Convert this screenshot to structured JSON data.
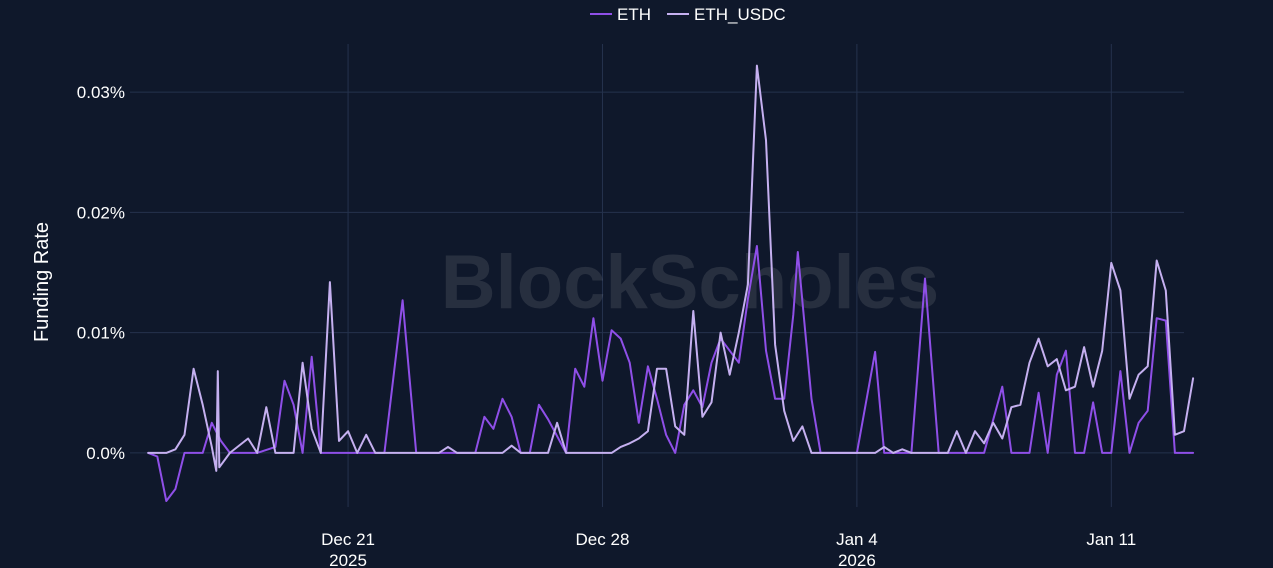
{
  "watermark": "BlockScholes",
  "chart_data": {
    "type": "line",
    "title": "",
    "xlabel": "",
    "ylabel": "Funding Rate",
    "x_range": [
      "2025-12-15",
      "2026-01-13"
    ],
    "ylim": [
      -0.0045,
      0.034
    ],
    "y_unit": "%",
    "y_ticks": [
      0.0,
      0.01,
      0.02,
      0.03
    ],
    "y_tick_labels": [
      "0.0%",
      "0.01%",
      "0.02%",
      "0.03%"
    ],
    "x_ticks": [
      "2025-12-21",
      "2025-12-28",
      "2026-01-04",
      "2026-01-11"
    ],
    "x_tick_labels": [
      {
        "day": "Dec 21",
        "year": "2025"
      },
      {
        "day": "Dec 28",
        "year": ""
      },
      {
        "day": "Jan 4",
        "year": "2026"
      },
      {
        "day": "Jan 11",
        "year": ""
      }
    ],
    "grid": true,
    "legend_position": "top-center",
    "series": [
      {
        "name": "ETH",
        "color": "#8f4fe8",
        "points": [
          [
            "2025-12-15T12:00",
            0.0
          ],
          [
            "2025-12-15T18:00",
            -0.0003
          ],
          [
            "2025-12-16T00:00",
            -0.004
          ],
          [
            "2025-12-16T06:00",
            -0.003
          ],
          [
            "2025-12-16T12:00",
            0.0
          ],
          [
            "2025-12-17T00:00",
            0.0
          ],
          [
            "2025-12-17T06:00",
            0.0025
          ],
          [
            "2025-12-17T12:00",
            0.001
          ],
          [
            "2025-12-17T18:00",
            0.0
          ],
          [
            "2025-12-18T12:00",
            0.0
          ],
          [
            "2025-12-19T00:00",
            0.0005
          ],
          [
            "2025-12-19T06:00",
            0.006
          ],
          [
            "2025-12-19T12:00",
            0.004
          ],
          [
            "2025-12-19T18:00",
            0.0
          ],
          [
            "2025-12-20T00:00",
            0.008
          ],
          [
            "2025-12-20T06:00",
            0.0
          ],
          [
            "2025-12-22T00:00",
            0.0
          ],
          [
            "2025-12-22T12:00",
            0.0127
          ],
          [
            "2025-12-22T21:00",
            0.0
          ],
          [
            "2025-12-24T12:00",
            0.0
          ],
          [
            "2025-12-24T18:00",
            0.003
          ],
          [
            "2025-12-25T00:00",
            0.002
          ],
          [
            "2025-12-25T06:00",
            0.0045
          ],
          [
            "2025-12-25T12:00",
            0.003
          ],
          [
            "2025-12-25T18:00",
            0.0
          ],
          [
            "2025-12-26T00:00",
            0.0
          ],
          [
            "2025-12-26T06:00",
            0.004
          ],
          [
            "2025-12-26T12:00",
            0.0028
          ],
          [
            "2025-12-27T00:00",
            0.0
          ],
          [
            "2025-12-27T06:00",
            0.007
          ],
          [
            "2025-12-27T12:00",
            0.0055
          ],
          [
            "2025-12-27T18:00",
            0.0112
          ],
          [
            "2025-12-28T00:00",
            0.006
          ],
          [
            "2025-12-28T06:00",
            0.0102
          ],
          [
            "2025-12-28T12:00",
            0.0095
          ],
          [
            "2025-12-28T18:00",
            0.0075
          ],
          [
            "2025-12-29T00:00",
            0.0025
          ],
          [
            "2025-12-29T06:00",
            0.0072
          ],
          [
            "2025-12-29T12:00",
            0.0045
          ],
          [
            "2025-12-29T18:00",
            0.0015
          ],
          [
            "2025-12-30T00:00",
            0.0
          ],
          [
            "2025-12-30T06:00",
            0.004
          ],
          [
            "2025-12-30T12:00",
            0.0052
          ],
          [
            "2025-12-30T18:00",
            0.0038
          ],
          [
            "2025-12-31T00:00",
            0.0075
          ],
          [
            "2025-12-31T06:00",
            0.0095
          ],
          [
            "2025-12-31T12:00",
            0.0085
          ],
          [
            "2025-12-31T18:00",
            0.0075
          ],
          [
            "2026-01-01T00:00",
            0.0128
          ],
          [
            "2026-01-01T06:00",
            0.0172
          ],
          [
            "2026-01-01T12:00",
            0.0085
          ],
          [
            "2026-01-01T18:00",
            0.0045
          ],
          [
            "2026-01-02T00:00",
            0.0045
          ],
          [
            "2026-01-02T06:00",
            0.0115
          ],
          [
            "2026-01-02T09:00",
            0.0167
          ],
          [
            "2026-01-02T18:00",
            0.0045
          ],
          [
            "2026-01-03T00:00",
            0.0
          ],
          [
            "2026-01-04T00:00",
            0.0
          ],
          [
            "2026-01-04T12:00",
            0.0084
          ],
          [
            "2026-01-04T18:00",
            0.0
          ],
          [
            "2026-01-05T12:00",
            0.0
          ],
          [
            "2026-01-05T21:00",
            0.0145
          ],
          [
            "2026-01-06T06:00",
            0.0
          ],
          [
            "2026-01-07T12:00",
            0.0
          ],
          [
            "2026-01-08T00:00",
            0.0055
          ],
          [
            "2026-01-08T06:00",
            0.0
          ],
          [
            "2026-01-08T18:00",
            0.0
          ],
          [
            "2026-01-09T00:00",
            0.005
          ],
          [
            "2026-01-09T06:00",
            0.0
          ],
          [
            "2026-01-09T12:00",
            0.0065
          ],
          [
            "2026-01-09T18:00",
            0.0085
          ],
          [
            "2026-01-10T00:00",
            0.0
          ],
          [
            "2026-01-10T06:00",
            0.0
          ],
          [
            "2026-01-10T12:00",
            0.0042
          ],
          [
            "2026-01-10T18:00",
            0.0
          ],
          [
            "2026-01-11T00:00",
            0.0
          ],
          [
            "2026-01-11T06:00",
            0.0068
          ],
          [
            "2026-01-11T12:00",
            0.0
          ],
          [
            "2026-01-11T18:00",
            0.0025
          ],
          [
            "2026-01-12T00:00",
            0.0035
          ],
          [
            "2026-01-12T06:00",
            0.0112
          ],
          [
            "2026-01-12T12:00",
            0.011
          ],
          [
            "2026-01-12T18:00",
            0.0
          ],
          [
            "2026-01-13T06:00",
            0.0
          ]
        ]
      },
      {
        "name": "ETH_USDC",
        "color": "#c5b0f0",
        "points": [
          [
            "2025-12-15T12:00",
            0.0
          ],
          [
            "2025-12-16T00:00",
            0.0
          ],
          [
            "2025-12-16T06:00",
            0.0003
          ],
          [
            "2025-12-16T12:00",
            0.0015
          ],
          [
            "2025-12-16T18:00",
            0.007
          ],
          [
            "2025-12-17T00:00",
            0.004
          ],
          [
            "2025-12-17T06:00",
            0.0005
          ],
          [
            "2025-12-17T09:00",
            -0.0015
          ],
          [
            "2025-12-17T10:00",
            0.0068
          ],
          [
            "2025-12-17T11:00",
            -0.0012
          ],
          [
            "2025-12-17T18:00",
            0.0
          ],
          [
            "2025-12-18T06:00",
            0.0012
          ],
          [
            "2025-12-18T12:00",
            0.0
          ],
          [
            "2025-12-18T18:00",
            0.0038
          ],
          [
            "2025-12-19T00:00",
            0.0
          ],
          [
            "2025-12-19T12:00",
            0.0
          ],
          [
            "2025-12-19T18:00",
            0.0075
          ],
          [
            "2025-12-20T00:00",
            0.002
          ],
          [
            "2025-12-20T06:00",
            0.0
          ],
          [
            "2025-12-20T12:00",
            0.0142
          ],
          [
            "2025-12-20T18:00",
            0.001
          ],
          [
            "2025-12-21T00:00",
            0.0018
          ],
          [
            "2025-12-21T06:00",
            0.0
          ],
          [
            "2025-12-21T12:00",
            0.0015
          ],
          [
            "2025-12-21T18:00",
            0.0
          ],
          [
            "2025-12-23T12:00",
            0.0
          ],
          [
            "2025-12-23T18:00",
            0.0005
          ],
          [
            "2025-12-24T00:00",
            0.0
          ],
          [
            "2025-12-25T06:00",
            0.0
          ],
          [
            "2025-12-25T12:00",
            0.0006
          ],
          [
            "2025-12-25T18:00",
            0.0
          ],
          [
            "2025-12-26T12:00",
            0.0
          ],
          [
            "2025-12-26T18:00",
            0.0025
          ],
          [
            "2025-12-27T00:00",
            0.0
          ],
          [
            "2025-12-28T06:00",
            0.0
          ],
          [
            "2025-12-28T12:00",
            0.0005
          ],
          [
            "2025-12-28T18:00",
            0.0008
          ],
          [
            "2025-12-29T00:00",
            0.0012
          ],
          [
            "2025-12-29T06:00",
            0.0018
          ],
          [
            "2025-12-29T12:00",
            0.007
          ],
          [
            "2025-12-29T18:00",
            0.007
          ],
          [
            "2025-12-30T00:00",
            0.0022
          ],
          [
            "2025-12-30T06:00",
            0.0015
          ],
          [
            "2025-12-30T12:00",
            0.0118
          ],
          [
            "2025-12-30T18:00",
            0.003
          ],
          [
            "2025-12-31T00:00",
            0.0042
          ],
          [
            "2025-12-31T06:00",
            0.01
          ],
          [
            "2025-12-31T12:00",
            0.0065
          ],
          [
            "2025-12-31T18:00",
            0.01
          ],
          [
            "2026-01-01T00:00",
            0.014
          ],
          [
            "2026-01-01T06:00",
            0.0322
          ],
          [
            "2026-01-01T12:00",
            0.026
          ],
          [
            "2026-01-01T18:00",
            0.009
          ],
          [
            "2026-01-02T00:00",
            0.0035
          ],
          [
            "2026-01-02T06:00",
            0.001
          ],
          [
            "2026-01-02T12:00",
            0.0022
          ],
          [
            "2026-01-02T18:00",
            0.0
          ],
          [
            "2026-01-04T12:00",
            0.0
          ],
          [
            "2026-01-04T18:00",
            0.0005
          ],
          [
            "2026-01-05T00:00",
            0.0
          ],
          [
            "2026-01-05T06:00",
            0.0003
          ],
          [
            "2026-01-05T12:00",
            0.0
          ],
          [
            "2026-01-06T12:00",
            0.0
          ],
          [
            "2026-01-06T18:00",
            0.0018
          ],
          [
            "2026-01-07T00:00",
            0.0
          ],
          [
            "2026-01-07T06:00",
            0.0018
          ],
          [
            "2026-01-07T12:00",
            0.0008
          ],
          [
            "2026-01-07T18:00",
            0.0025
          ],
          [
            "2026-01-08T00:00",
            0.0012
          ],
          [
            "2026-01-08T06:00",
            0.0038
          ],
          [
            "2026-01-08T12:00",
            0.004
          ],
          [
            "2026-01-08T18:00",
            0.0075
          ],
          [
            "2026-01-09T00:00",
            0.0095
          ],
          [
            "2026-01-09T06:00",
            0.0072
          ],
          [
            "2026-01-09T12:00",
            0.0078
          ],
          [
            "2026-01-09T18:00",
            0.0052
          ],
          [
            "2026-01-10T00:00",
            0.0055
          ],
          [
            "2026-01-10T06:00",
            0.0088
          ],
          [
            "2026-01-10T12:00",
            0.0055
          ],
          [
            "2026-01-10T18:00",
            0.0085
          ],
          [
            "2026-01-11T00:00",
            0.0158
          ],
          [
            "2026-01-11T06:00",
            0.0135
          ],
          [
            "2026-01-11T12:00",
            0.0045
          ],
          [
            "2026-01-11T18:00",
            0.0065
          ],
          [
            "2026-01-12T00:00",
            0.0072
          ],
          [
            "2026-01-12T06:00",
            0.016
          ],
          [
            "2026-01-12T12:00",
            0.0135
          ],
          [
            "2026-01-12T18:00",
            0.0015
          ],
          [
            "2026-01-13T00:00",
            0.0018
          ],
          [
            "2026-01-13T06:00",
            0.0062
          ]
        ]
      }
    ]
  }
}
